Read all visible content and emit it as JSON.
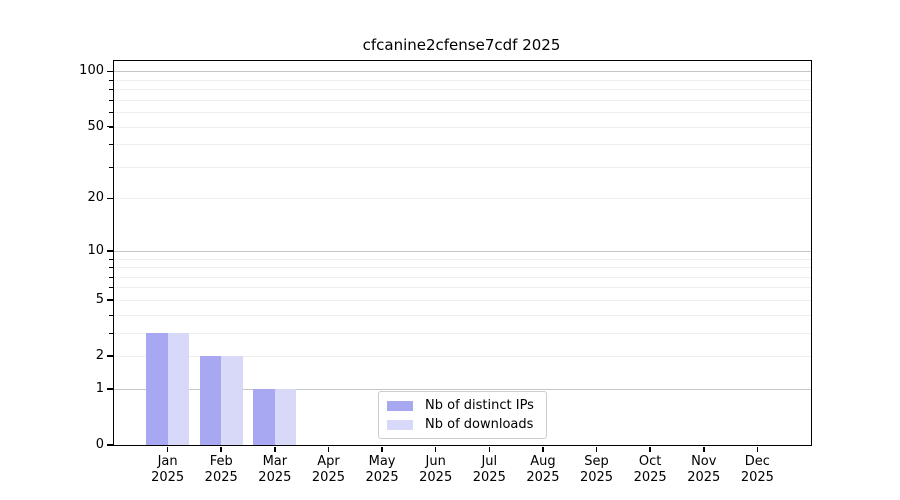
{
  "chart_data": {
    "type": "bar",
    "title": "cfcanine2cfense7cdf 2025",
    "categories": [
      "Jan 2025",
      "Feb 2025",
      "Mar 2025",
      "Apr 2025",
      "May 2025",
      "Jun 2025",
      "Jul 2025",
      "Aug 2025",
      "Sep 2025",
      "Oct 2025",
      "Nov 2025",
      "Dec 2025"
    ],
    "series": [
      {
        "name": "Nb of distinct IPs",
        "color": "#a8a8f2",
        "values": [
          3,
          2,
          1,
          0,
          0,
          0,
          0,
          0,
          0,
          0,
          0,
          0
        ]
      },
      {
        "name": "Nb of downloads",
        "color": "#d8d8f8",
        "values": [
          3,
          2,
          1,
          0,
          0,
          0,
          0,
          0,
          0,
          0,
          0,
          0
        ]
      }
    ],
    "xlabel": "",
    "ylabel": "",
    "y_axis": {
      "scale": "log(value+1)",
      "tick_labels": [
        "100",
        "50",
        "20",
        "10",
        "5",
        "2",
        "1",
        "0"
      ],
      "tick_values": [
        100,
        50,
        20,
        10,
        5,
        2,
        1,
        0
      ],
      "major_gridline_values": [
        100,
        10,
        1
      ],
      "minor_gridline_values": [
        90,
        80,
        70,
        60,
        50,
        40,
        30,
        20,
        9,
        8,
        7,
        6,
        5,
        4,
        3,
        2
      ],
      "ylim": [
        0,
        114
      ]
    },
    "grid": true,
    "legend": {
      "position": "lower center",
      "entries": [
        "Nb of distinct IPs",
        "Nb of downloads"
      ]
    }
  }
}
